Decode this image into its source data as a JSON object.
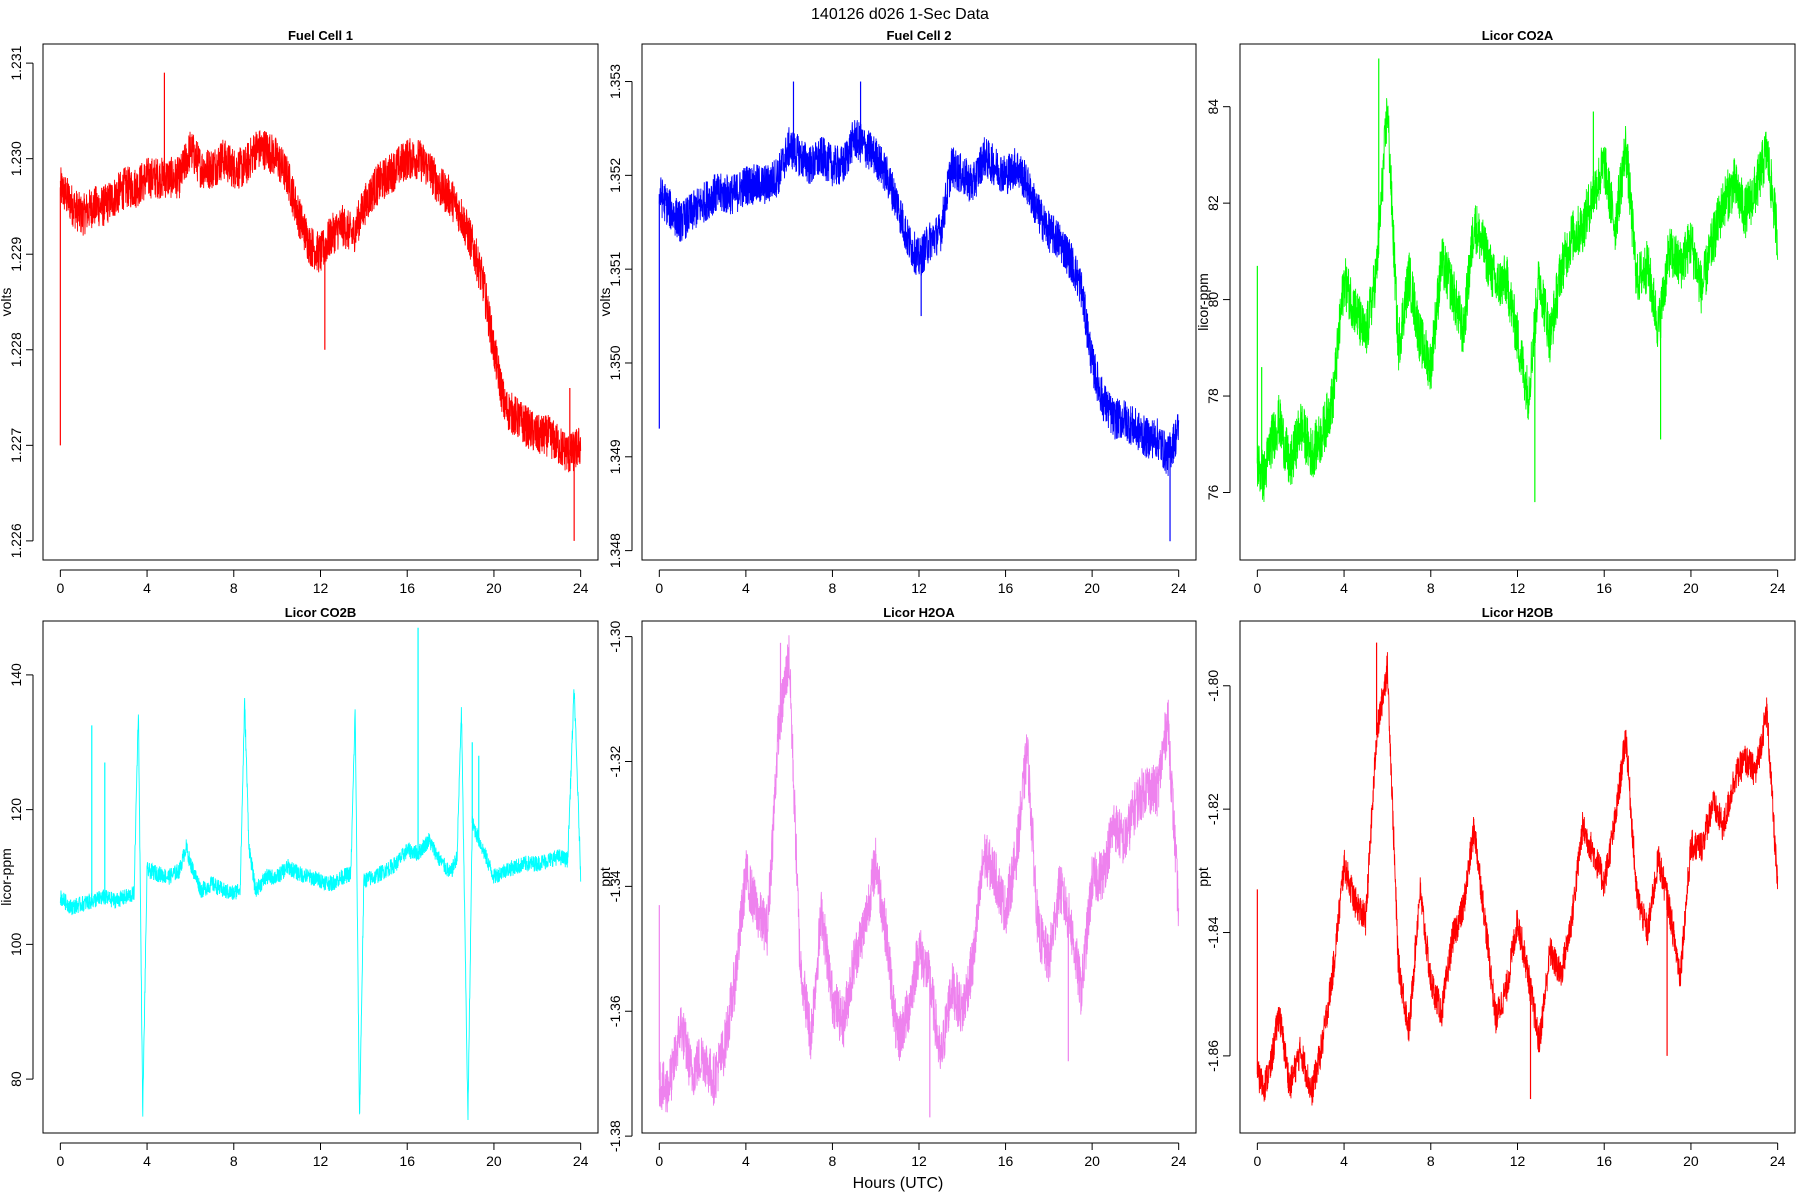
{
  "figure": {
    "title": "140126   d026   1-Sec Data",
    "xlabel": "Hours (UTC)"
  },
  "chart_data": [
    {
      "type": "line",
      "title": "Fuel Cell 1",
      "ylabel": "volts",
      "color": "#ff0000",
      "xlim": [
        -0.8,
        24.8
      ],
      "ylim": [
        1.2258,
        1.2312
      ],
      "xticks": [
        0,
        4,
        8,
        12,
        16,
        20,
        24
      ],
      "yticks": [
        1.226,
        1.227,
        1.228,
        1.229,
        1.23,
        1.231
      ],
      "ytick_labels": [
        "1.226",
        "1.227",
        "1.228",
        "1.229",
        "1.230",
        "1.231"
      ],
      "grid": false,
      "noise": 0.00022,
      "x": [
        0,
        0.3,
        0.6,
        1,
        1.5,
        2,
        2.5,
        3,
        3.5,
        4,
        4.5,
        5,
        5.5,
        6,
        6.5,
        7,
        7.5,
        8,
        8.5,
        9,
        9.5,
        10,
        10.5,
        11,
        11.5,
        12,
        12.5,
        13,
        13.5,
        14,
        14.5,
        15,
        15.5,
        16,
        16.5,
        17,
        17.5,
        18,
        18.5,
        19,
        19.5,
        20,
        20.5,
        21,
        21.5,
        22,
        22.5,
        23,
        23.5,
        24
      ],
      "y": [
        1.2297,
        1.2296,
        1.2295,
        1.2294,
        1.2295,
        1.2295,
        1.2296,
        1.2297,
        1.2297,
        1.2298,
        1.2298,
        1.2298,
        1.2298,
        1.2301,
        1.2299,
        1.2299,
        1.23,
        1.2299,
        1.2299,
        1.2301,
        1.2301,
        1.23,
        1.2298,
        1.2294,
        1.2291,
        1.229,
        1.2292,
        1.2293,
        1.2292,
        1.2295,
        1.2297,
        1.2298,
        1.2299,
        1.23,
        1.23,
        1.2299,
        1.2297,
        1.2296,
        1.2294,
        1.2291,
        1.2287,
        1.228,
        1.2274,
        1.2273,
        1.2272,
        1.2271,
        1.2271,
        1.227,
        1.2269,
        1.227
      ],
      "spikes": [
        [
          0,
          1.227
        ],
        [
          4.8,
          1.2309
        ],
        [
          12.2,
          1.228
        ],
        [
          23.7,
          1.226
        ],
        [
          23.5,
          1.2276
        ]
      ]
    },
    {
      "type": "line",
      "title": "Fuel Cell 2",
      "ylabel": "volts",
      "color": "#0000ff",
      "xlim": [
        -0.8,
        24.8
      ],
      "ylim": [
        1.3479,
        1.3534
      ],
      "xticks": [
        0,
        4,
        8,
        12,
        16,
        20,
        24
      ],
      "yticks": [
        1.348,
        1.349,
        1.35,
        1.351,
        1.352,
        1.353
      ],
      "ytick_labels": [
        "1.348",
        "1.349",
        "1.350",
        "1.351",
        "1.352",
        "1.353"
      ],
      "grid": false,
      "noise": 0.00022,
      "x": [
        0,
        0.3,
        0.6,
        1,
        1.5,
        2,
        2.5,
        3,
        3.5,
        4,
        4.5,
        5,
        5.5,
        6,
        6.5,
        7,
        7.5,
        8,
        8.5,
        9,
        9.5,
        10,
        10.5,
        11,
        11.5,
        12,
        12.5,
        13,
        13.5,
        14,
        14.5,
        15,
        15.5,
        16,
        16.5,
        17,
        17.5,
        18,
        18.5,
        19,
        19.5,
        20,
        20.5,
        21,
        21.5,
        22,
        22.5,
        23,
        23.5,
        24
      ],
      "y": [
        1.3518,
        1.3517,
        1.3516,
        1.3515,
        1.3516,
        1.3517,
        1.3518,
        1.3518,
        1.3518,
        1.3519,
        1.3519,
        1.3519,
        1.352,
        1.3523,
        1.3522,
        1.3521,
        1.3522,
        1.3521,
        1.3521,
        1.3524,
        1.3523,
        1.3522,
        1.352,
        1.3517,
        1.3513,
        1.3511,
        1.3513,
        1.3514,
        1.3521,
        1.352,
        1.3519,
        1.3522,
        1.3521,
        1.352,
        1.3521,
        1.3519,
        1.3516,
        1.3514,
        1.3513,
        1.3511,
        1.3508,
        1.35,
        1.3496,
        1.3494,
        1.3494,
        1.3493,
        1.3492,
        1.3492,
        1.349,
        1.3493
      ],
      "spikes": [
        [
          0,
          1.3493
        ],
        [
          6.2,
          1.353
        ],
        [
          9.3,
          1.353
        ],
        [
          12.1,
          1.3505
        ],
        [
          23.6,
          1.3481
        ]
      ]
    },
    {
      "type": "line",
      "title": "Licor CO2A",
      "ylabel": "licor-ppm",
      "color": "#00ff00",
      "xlim": [
        -0.8,
        24.8
      ],
      "ylim": [
        74.6,
        85.3
      ],
      "xticks": [
        0,
        4,
        8,
        12,
        16,
        20,
        24
      ],
      "yticks": [
        76,
        78,
        80,
        82,
        84
      ],
      "ytick_labels": [
        "76",
        "78",
        "80",
        "82",
        "84"
      ],
      "grid": false,
      "noise": 0.55,
      "x": [
        0,
        0.3,
        0.6,
        1,
        1.5,
        2,
        2.5,
        3,
        3.5,
        4,
        4.5,
        5,
        5.5,
        6,
        6.5,
        7,
        7.5,
        8,
        8.5,
        9,
        9.5,
        10,
        10.5,
        11,
        11.5,
        12,
        12.5,
        13,
        13.5,
        14,
        14.5,
        15,
        15.5,
        16,
        16.5,
        17,
        17.5,
        18,
        18.5,
        19,
        19.5,
        20,
        20.5,
        21,
        21.5,
        22,
        22.5,
        23,
        23.5,
        24
      ],
      "y": [
        76.6,
        76.3,
        77.0,
        77.5,
        76.5,
        77.4,
        76.8,
        77.2,
        78.0,
        80.4,
        79.8,
        79.2,
        80.6,
        84.0,
        79.0,
        80.5,
        79.2,
        78.6,
        80.8,
        80.2,
        79.3,
        81.6,
        81.0,
        80.3,
        80.4,
        79.2,
        78.0,
        80.5,
        79.2,
        80.6,
        81.3,
        81.5,
        82.2,
        82.8,
        81.5,
        83.2,
        80.4,
        80.7,
        79.4,
        81.0,
        80.7,
        81.2,
        80.2,
        81.2,
        82.0,
        82.4,
        81.8,
        82.3,
        83.1,
        81.3
      ],
      "spikes": [
        [
          0,
          80.7
        ],
        [
          0.2,
          78.6
        ],
        [
          5.6,
          85.0
        ],
        [
          12.8,
          75.8
        ],
        [
          18.6,
          77.1
        ],
        [
          15.5,
          83.9
        ]
      ]
    },
    {
      "type": "line",
      "title": "Licor CO2B",
      "ylabel": "licor-ppm",
      "color": "#00ffff",
      "xlim": [
        -0.8,
        24.8
      ],
      "ylim": [
        72.0,
        148.0
      ],
      "xticks": [
        0,
        4,
        8,
        12,
        16,
        20,
        24
      ],
      "yticks": [
        80,
        100,
        120,
        140
      ],
      "ytick_labels": [
        "80",
        "100",
        "120",
        "140"
      ],
      "grid": false,
      "noise": 1.2,
      "x": [
        0,
        0.5,
        1,
        1.5,
        2,
        2.5,
        3,
        3.4,
        3.6,
        3.8,
        4,
        4.5,
        5,
        5.5,
        5.8,
        6,
        6.5,
        7,
        7.5,
        8,
        8.3,
        8.5,
        8.7,
        9,
        9.5,
        10,
        10.5,
        11,
        11.5,
        12,
        12.5,
        13,
        13.4,
        13.6,
        13.8,
        14,
        14.5,
        15,
        15.5,
        16,
        16.5,
        17,
        17.5,
        18,
        18.3,
        18.5,
        18.8,
        19,
        19.5,
        20,
        20.5,
        21,
        21.5,
        22,
        22.5,
        23,
        23.4,
        23.7,
        24
      ],
      "y": [
        107,
        105.5,
        106,
        106.5,
        107,
        106.5,
        107,
        107.5,
        135,
        75,
        111,
        110.5,
        110,
        111,
        114.5,
        112,
        108,
        109,
        108,
        107.5,
        108.5,
        136,
        114.5,
        108,
        110,
        110,
        111.5,
        110.5,
        110,
        109.5,
        109,
        110,
        110.5,
        135,
        74,
        109.5,
        110,
        111,
        112,
        114,
        113.5,
        115.5,
        112.5,
        110.5,
        113,
        135,
        74,
        118,
        114,
        110,
        111,
        111.5,
        112,
        112,
        112.5,
        113,
        112.5,
        138,
        110.5
      ],
      "spikes": [
        [
          1.45,
          132.5
        ],
        [
          2.05,
          127
        ],
        [
          16.5,
          147
        ],
        [
          19.0,
          130
        ],
        [
          19.3,
          128
        ]
      ]
    },
    {
      "type": "line",
      "title": "Licor H2OA",
      "ylabel": "ppt",
      "color": "#ee82ee",
      "xlim": [
        -0.8,
        24.8
      ],
      "ylim": [
        -1.3795,
        -1.2975
      ],
      "xticks": [
        0,
        4,
        8,
        12,
        16,
        20,
        24
      ],
      "yticks": [
        -1.38,
        -1.36,
        -1.34,
        -1.32,
        -1.3
      ],
      "ytick_labels": [
        "-1.38",
        "-1.36",
        "-1.34",
        "-1.32",
        "-1.30"
      ],
      "grid": false,
      "noise": 0.0042,
      "x": [
        0,
        0.3,
        0.6,
        1,
        1.5,
        2,
        2.5,
        3,
        3.5,
        4,
        4.5,
        5,
        5.5,
        6,
        6.5,
        7,
        7.5,
        8,
        8.5,
        9,
        9.5,
        10,
        10.5,
        11,
        11.5,
        12,
        12.5,
        13,
        13.5,
        14,
        14.5,
        15,
        15.5,
        16,
        16.5,
        17,
        17.5,
        18,
        18.5,
        19,
        19.5,
        20,
        20.5,
        21,
        21.5,
        22,
        22.5,
        23,
        23.5,
        24
      ],
      "y": [
        -1.371,
        -1.373,
        -1.37,
        -1.362,
        -1.37,
        -1.367,
        -1.371,
        -1.366,
        -1.355,
        -1.338,
        -1.344,
        -1.347,
        -1.315,
        -1.303,
        -1.352,
        -1.364,
        -1.344,
        -1.358,
        -1.362,
        -1.352,
        -1.346,
        -1.336,
        -1.348,
        -1.365,
        -1.36,
        -1.35,
        -1.355,
        -1.368,
        -1.356,
        -1.36,
        -1.352,
        -1.335,
        -1.338,
        -1.344,
        -1.335,
        -1.318,
        -1.347,
        -1.352,
        -1.34,
        -1.346,
        -1.357,
        -1.339,
        -1.338,
        -1.33,
        -1.333,
        -1.327,
        -1.324,
        -1.325,
        -1.313,
        -1.344
      ],
      "spikes": [
        [
          0,
          -1.343
        ],
        [
          5.6,
          -1.301
        ],
        [
          12.5,
          -1.377
        ],
        [
          18.9,
          -1.368
        ]
      ]
    },
    {
      "type": "line",
      "title": "Licor H2OB",
      "ylabel": "ppt",
      "color": "#ff0000",
      "xlim": [
        -0.8,
        24.8
      ],
      "ylim": [
        -1.8725,
        -1.7895
      ],
      "xticks": [
        0,
        4,
        8,
        12,
        16,
        20,
        24
      ],
      "yticks": [
        -1.86,
        -1.84,
        -1.82,
        -1.8
      ],
      "ytick_labels": [
        "-1.86",
        "-1.84",
        "-1.82",
        "-1.80"
      ],
      "grid": false,
      "noise": 0.0026,
      "x": [
        0,
        0.3,
        0.6,
        1,
        1.5,
        2,
        2.5,
        3,
        3.5,
        4,
        4.5,
        5,
        5.5,
        6,
        6.5,
        7,
        7.5,
        8,
        8.5,
        9,
        9.5,
        10,
        10.5,
        11,
        11.5,
        12,
        12.5,
        13,
        13.5,
        14,
        14.5,
        15,
        15.5,
        16,
        16.5,
        17,
        17.5,
        18,
        18.5,
        19,
        19.5,
        20,
        20.5,
        21,
        21.5,
        22,
        22.5,
        23,
        23.5,
        24
      ],
      "y": [
        -1.863,
        -1.865,
        -1.862,
        -1.853,
        -1.865,
        -1.859,
        -1.866,
        -1.858,
        -1.846,
        -1.829,
        -1.835,
        -1.838,
        -1.808,
        -1.797,
        -1.845,
        -1.856,
        -1.833,
        -1.848,
        -1.853,
        -1.841,
        -1.836,
        -1.823,
        -1.838,
        -1.854,
        -1.849,
        -1.838,
        -1.847,
        -1.858,
        -1.843,
        -1.847,
        -1.838,
        -1.823,
        -1.827,
        -1.832,
        -1.822,
        -1.808,
        -1.834,
        -1.84,
        -1.828,
        -1.836,
        -1.847,
        -1.826,
        -1.826,
        -1.819,
        -1.823,
        -1.815,
        -1.812,
        -1.814,
        -1.804,
        -1.833
      ],
      "spikes": [
        [
          0,
          -1.833
        ],
        [
          5.5,
          -1.793
        ],
        [
          12.6,
          -1.867
        ],
        [
          18.9,
          -1.86
        ]
      ]
    }
  ]
}
